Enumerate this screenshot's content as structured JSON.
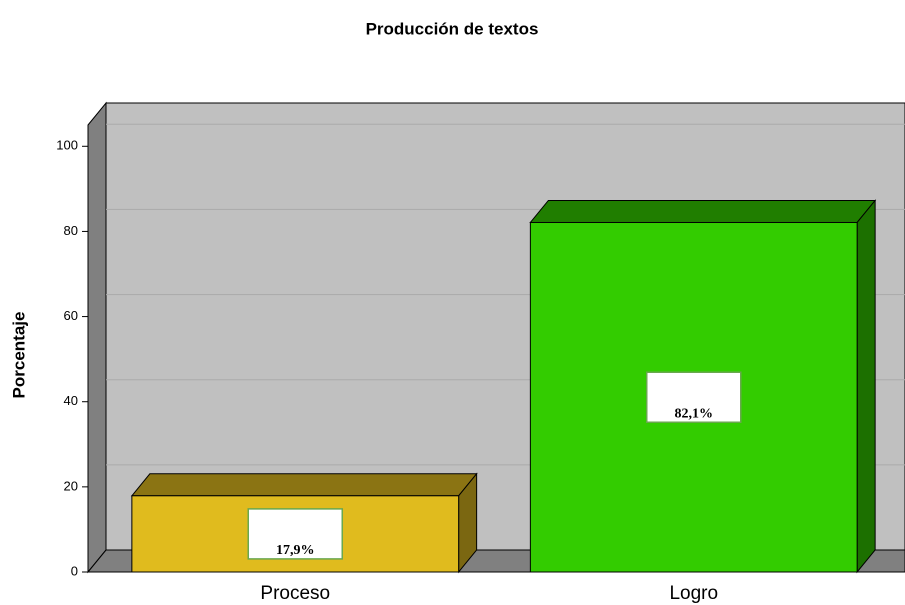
{
  "chart_data": {
    "type": "bar3d",
    "title": "Producción de textos",
    "y_label": "Porcentaje",
    "categories": [
      "Proceso",
      "Logro"
    ],
    "values": [
      17.9,
      82.1
    ],
    "value_labels": [
      "17,9%",
      "82,1%"
    ],
    "colors": [
      "#e0bb1e",
      "#33cc00"
    ],
    "ylim": [
      0,
      105
    ],
    "yticks": [
      0,
      20,
      40,
      60,
      80,
      100
    ],
    "grid": true
  }
}
